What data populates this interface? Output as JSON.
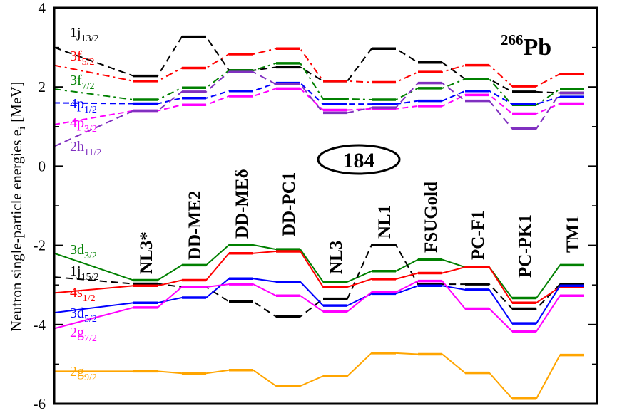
{
  "chart_data": {
    "type": "line",
    "ylabel": "Neutron single-particle energies e",
    "ylabel_sub": "i",
    "ylabel_unit": "[MeV]",
    "ylim": [
      -6,
      4
    ],
    "yticks": [
      "4",
      "2",
      "0",
      "-2",
      "-4",
      "-6"
    ],
    "nucleus": {
      "mass": "266",
      "symbol": "Pb"
    },
    "magic_number": "184",
    "categories": [
      "NL3*",
      "DD-ME2",
      "DD-MEδ",
      "DD-PC1",
      "NL3",
      "NL1",
      "FSUGold",
      "PC-F1",
      "PC-PK1",
      "TM1"
    ],
    "series": [
      {
        "name": "1j",
        "sub": "13/2",
        "color": "#000000",
        "dash": "10,6",
        "side": "high",
        "lead": 3.0,
        "values": [
          2.28,
          3.27,
          2.42,
          2.5,
          2.15,
          2.97,
          2.62,
          2.2,
          1.88,
          1.85
        ]
      },
      {
        "name": "3f",
        "sub": "5/2",
        "color": "#ff0000",
        "dash": "10,5,3,5",
        "side": "high",
        "lead": 2.55,
        "values": [
          2.15,
          2.48,
          2.83,
          2.97,
          2.15,
          2.12,
          2.38,
          2.55,
          2.02,
          2.33
        ]
      },
      {
        "name": "3f",
        "sub": "7/2",
        "color": "#008000",
        "dash": "10,5,3,5",
        "side": "high",
        "lead": 1.95,
        "values": [
          1.68,
          1.98,
          2.42,
          2.6,
          1.7,
          1.68,
          1.97,
          2.2,
          1.55,
          1.95
        ]
      },
      {
        "name": "4p",
        "sub": "1/2",
        "color": "#0000ff",
        "dash": "8,5",
        "side": "high",
        "lead": 1.6,
        "values": [
          1.58,
          1.72,
          1.9,
          2.1,
          1.57,
          1.57,
          1.65,
          1.9,
          1.57,
          1.75
        ]
      },
      {
        "name": "4p",
        "sub": "3/2",
        "color": "#ff00ff",
        "dash": "8,5",
        "side": "high",
        "lead": 1.05,
        "values": [
          1.4,
          1.55,
          1.77,
          1.96,
          1.42,
          1.45,
          1.52,
          1.8,
          1.33,
          1.58
        ]
      },
      {
        "name": "2h",
        "sub": "11/2",
        "color": "#8030c0",
        "dash": "10,6",
        "side": "high",
        "lead": 0.5,
        "values": [
          1.4,
          1.88,
          2.38,
          2.07,
          1.35,
          1.48,
          2.1,
          1.65,
          0.95,
          1.85
        ]
      },
      {
        "name": "3d",
        "sub": "3/2",
        "color": "#008000",
        "dash": "",
        "side": "low",
        "lead": -2.2,
        "values": [
          -2.88,
          -2.5,
          -1.99,
          -2.1,
          -2.92,
          -2.65,
          -2.36,
          -2.55,
          -3.33,
          -2.5
        ]
      },
      {
        "name": "1j",
        "sub": "15/2",
        "color": "#000000",
        "dash": "10,6",
        "side": "low",
        "lead": -2.8,
        "values": [
          -2.97,
          -3.05,
          -3.42,
          -3.8,
          -3.35,
          -1.99,
          -2.98,
          -2.98,
          -3.6,
          -2.98
        ]
      },
      {
        "name": "4s",
        "sub": "1/2",
        "color": "#ff0000",
        "dash": "",
        "side": "low",
        "lead": -3.2,
        "values": [
          -3.02,
          -2.88,
          -2.2,
          -2.15,
          -3.05,
          -2.85,
          -2.7,
          -2.55,
          -3.45,
          -3.05
        ]
      },
      {
        "name": "3d",
        "sub": "5/2",
        "color": "#0000ff",
        "dash": "",
        "side": "low",
        "lead": -3.7,
        "values": [
          -3.45,
          -3.32,
          -2.84,
          -2.92,
          -3.52,
          -3.22,
          -3.02,
          -3.12,
          -3.97,
          -3.02
        ]
      },
      {
        "name": "2g",
        "sub": "7/2",
        "color": "#ff00ff",
        "dash": "",
        "side": "low",
        "lead": -4.1,
        "values": [
          -3.57,
          -3.05,
          -2.98,
          -3.27,
          -3.67,
          -3.18,
          -2.9,
          -3.6,
          -4.17,
          -3.27
        ]
      },
      {
        "name": "2g",
        "sub": "9/2",
        "color": "#ffa500",
        "dash": "",
        "side": "low",
        "lead": -5.18,
        "values": [
          -5.18,
          -5.23,
          -5.15,
          -5.55,
          -5.3,
          -4.72,
          -4.75,
          -5.22,
          -5.87,
          -4.77
        ]
      }
    ]
  }
}
